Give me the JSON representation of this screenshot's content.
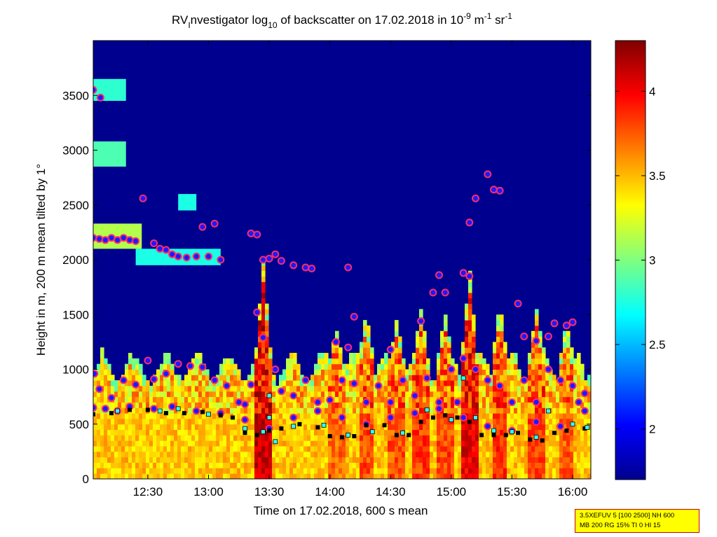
{
  "chart_data": {
    "type": "heatmap",
    "title": {
      "base": "RV",
      "sub1": "I",
      "mid": "nvestigator log",
      "sub2": "10",
      "rest": " of backscatter on 17.02.2018 in 10",
      "sup1": "-9",
      "unit1": " m",
      "sup2": "-1",
      "unit2": " sr",
      "sup3": "-1"
    },
    "xlabel": "Time on 17.02.2018, 600 s mean",
    "ylabel": "Height in m, 200 m mean tilted by 1°",
    "x_ticks": [
      "12:30",
      "13:00",
      "13:30",
      "14:00",
      "14:30",
      "15:00",
      "15:30",
      "16:00"
    ],
    "x_tick_hours": [
      12.5,
      13.0,
      13.5,
      14.0,
      14.5,
      15.0,
      15.5,
      16.0
    ],
    "xlim_hours": [
      12.05,
      16.15
    ],
    "y_ticks": [
      0,
      500,
      1000,
      1500,
      2000,
      2500,
      3000,
      3500
    ],
    "ylim": [
      0,
      4000
    ],
    "colorbar": {
      "ticks": [
        2,
        2.5,
        3,
        3.5,
        4
      ],
      "range": [
        1.7,
        4.3
      ],
      "colormap": "jet",
      "colors": [
        "#00008f",
        "#0000ff",
        "#00ffff",
        "#ffff00",
        "#ff0000",
        "#800000"
      ]
    },
    "series": [
      {
        "marker": "circle (blue fill, red/white outline)",
        "points": [
          [
            12.05,
            3550
          ],
          [
            12.11,
            3480
          ],
          [
            12.05,
            2200
          ],
          [
            12.1,
            2190
          ],
          [
            12.15,
            2180
          ],
          [
            12.2,
            2200
          ],
          [
            12.25,
            2180
          ],
          [
            12.3,
            2200
          ],
          [
            12.35,
            2180
          ],
          [
            12.4,
            2170
          ],
          [
            12.46,
            2560
          ],
          [
            12.55,
            2150
          ],
          [
            12.6,
            2100
          ],
          [
            12.65,
            2090
          ],
          [
            12.7,
            2050
          ],
          [
            12.75,
            2030
          ],
          [
            12.82,
            2020
          ],
          [
            12.9,
            2030
          ],
          [
            12.95,
            2300
          ],
          [
            13.0,
            2030
          ],
          [
            13.05,
            2330
          ],
          [
            13.1,
            2000
          ],
          [
            13.35,
            2240
          ],
          [
            13.4,
            2230
          ],
          [
            13.45,
            2000
          ],
          [
            13.5,
            2010
          ],
          [
            13.55,
            2050
          ],
          [
            13.6,
            1990
          ],
          [
            13.7,
            1950
          ],
          [
            13.8,
            1930
          ],
          [
            13.85,
            1920
          ],
          [
            13.4,
            1520
          ],
          [
            14.15,
            1930
          ],
          [
            14.2,
            1480
          ],
          [
            14.05,
            1250
          ],
          [
            14.15,
            1200
          ],
          [
            14.5,
            1180
          ],
          [
            14.75,
            1440
          ],
          [
            14.85,
            1700
          ],
          [
            14.9,
            1860
          ],
          [
            14.95,
            1700
          ],
          [
            15.1,
            1880
          ],
          [
            15.15,
            1850
          ],
          [
            15.15,
            2340
          ],
          [
            15.2,
            2560
          ],
          [
            15.3,
            2780
          ],
          [
            15.35,
            2640
          ],
          [
            15.4,
            2630
          ],
          [
            15.55,
            1600
          ],
          [
            15.6,
            1300
          ],
          [
            15.7,
            1260
          ],
          [
            15.8,
            1300
          ],
          [
            15.85,
            1420
          ],
          [
            15.95,
            1400
          ],
          [
            16.0,
            1430
          ],
          [
            12.06,
            960
          ],
          [
            12.1,
            820
          ],
          [
            12.2,
            740
          ],
          [
            12.3,
            900
          ],
          [
            12.4,
            860
          ],
          [
            12.5,
            1080
          ],
          [
            12.55,
            910
          ],
          [
            12.65,
            960
          ],
          [
            12.75,
            1050
          ],
          [
            12.85,
            1030
          ],
          [
            12.95,
            1020
          ],
          [
            13.05,
            900
          ],
          [
            13.15,
            850
          ],
          [
            13.25,
            700
          ],
          [
            13.3,
            680
          ],
          [
            13.35,
            860
          ],
          [
            13.45,
            1290
          ],
          [
            13.55,
            1000
          ],
          [
            13.6,
            800
          ],
          [
            13.7,
            760
          ],
          [
            13.8,
            900
          ],
          [
            13.9,
            700
          ],
          [
            14.0,
            720
          ],
          [
            14.1,
            900
          ],
          [
            14.2,
            870
          ],
          [
            14.3,
            700
          ],
          [
            14.4,
            850
          ],
          [
            14.5,
            700
          ],
          [
            14.6,
            900
          ],
          [
            14.7,
            760
          ],
          [
            14.8,
            920
          ],
          [
            14.9,
            700
          ],
          [
            15.0,
            1000
          ],
          [
            15.05,
            700
          ],
          [
            15.1,
            1100
          ],
          [
            15.2,
            1000
          ],
          [
            15.3,
            900
          ],
          [
            15.4,
            850
          ],
          [
            15.5,
            700
          ],
          [
            15.6,
            900
          ],
          [
            15.7,
            700
          ],
          [
            15.8,
            1000
          ],
          [
            15.9,
            900
          ],
          [
            16.0,
            850
          ],
          [
            16.05,
            700
          ],
          [
            16.1,
            780
          ],
          [
            12.05,
            650
          ],
          [
            12.15,
            640
          ],
          [
            12.25,
            620
          ],
          [
            12.35,
            660
          ],
          [
            12.55,
            640
          ],
          [
            12.7,
            660
          ],
          [
            12.9,
            620
          ],
          [
            13.1,
            600
          ],
          [
            13.3,
            540
          ],
          [
            13.5,
            460
          ],
          [
            13.7,
            560
          ],
          [
            13.9,
            620
          ],
          [
            14.1,
            560
          ],
          [
            14.3,
            500
          ],
          [
            14.5,
            560
          ],
          [
            14.7,
            600
          ],
          [
            14.9,
            640
          ],
          [
            15.1,
            560
          ],
          [
            15.3,
            480
          ],
          [
            15.5,
            440
          ],
          [
            15.7,
            520
          ],
          [
            15.9,
            480
          ],
          [
            16.1,
            620
          ]
        ]
      },
      {
        "marker": "square (black)",
        "points": [
          [
            12.05,
            590
          ],
          [
            12.2,
            600
          ],
          [
            12.35,
            630
          ],
          [
            12.5,
            630
          ],
          [
            12.65,
            600
          ],
          [
            12.8,
            600
          ],
          [
            12.95,
            610
          ],
          [
            13.1,
            580
          ],
          [
            13.2,
            560
          ],
          [
            13.3,
            420
          ],
          [
            13.4,
            400
          ],
          [
            13.5,
            440
          ],
          [
            13.6,
            460
          ],
          [
            13.75,
            500
          ],
          [
            13.9,
            470
          ],
          [
            14.0,
            390
          ],
          [
            14.1,
            380
          ],
          [
            14.2,
            390
          ],
          [
            14.3,
            490
          ],
          [
            14.45,
            490
          ],
          [
            14.55,
            400
          ],
          [
            14.65,
            400
          ],
          [
            14.75,
            520
          ],
          [
            14.85,
            560
          ],
          [
            14.95,
            580
          ],
          [
            15.05,
            560
          ],
          [
            15.15,
            520
          ],
          [
            15.25,
            400
          ],
          [
            15.35,
            400
          ],
          [
            15.45,
            400
          ],
          [
            15.55,
            420
          ],
          [
            15.65,
            360
          ],
          [
            15.75,
            350
          ],
          [
            15.85,
            420
          ],
          [
            15.95,
            440
          ],
          [
            16.1,
            460
          ]
        ]
      },
      {
        "marker": "square (cyan)",
        "points": [
          [
            12.25,
            620
          ],
          [
            12.6,
            620
          ],
          [
            12.75,
            640
          ],
          [
            13.0,
            590
          ],
          [
            13.3,
            460
          ],
          [
            13.45,
            430
          ],
          [
            13.55,
            340
          ],
          [
            13.7,
            480
          ],
          [
            13.95,
            490
          ],
          [
            14.15,
            400
          ],
          [
            14.35,
            430
          ],
          [
            14.6,
            420
          ],
          [
            14.8,
            630
          ],
          [
            15.0,
            540
          ],
          [
            15.1,
            920
          ],
          [
            15.2,
            560
          ],
          [
            15.35,
            440
          ],
          [
            15.5,
            430
          ],
          [
            15.7,
            380
          ],
          [
            15.8,
            620
          ],
          [
            16.0,
            500
          ],
          [
            16.12,
            470
          ],
          [
            13.5,
            560
          ],
          [
            13.5,
            760
          ]
        ]
      }
    ]
  },
  "info_box": {
    "line1": "3.5XEFUV 5 [100 2500] NH 600",
    "line2": "MB 200 RG 15% TI 0 HI 15"
  }
}
